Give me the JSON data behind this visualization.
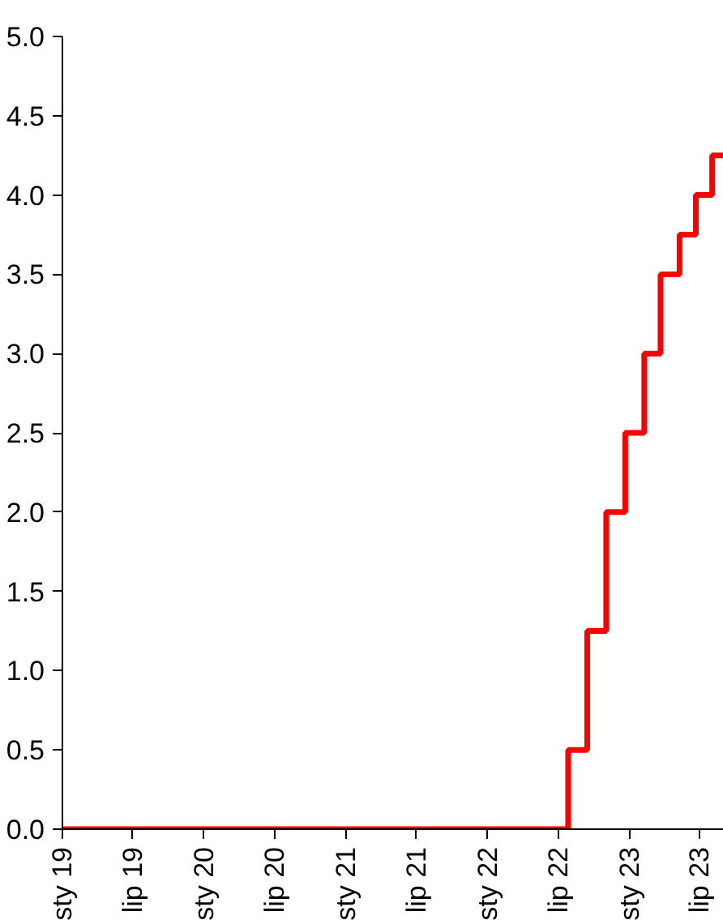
{
  "chart_data": {
    "type": "step",
    "x": [
      "2019-01-01",
      "2022-07-27",
      "2022-09-14",
      "2022-11-02",
      "2022-12-21",
      "2023-02-08",
      "2023-03-22",
      "2023-05-10",
      "2023-06-21",
      "2023-08-02",
      "2023-08-31"
    ],
    "series": [
      {
        "color": "#ff0000",
        "values": [
          0,
          0.5,
          1.25,
          2.0,
          2.5,
          3.0,
          3.5,
          3.75,
          4.0,
          4.25,
          4.25
        ]
      }
    ],
    "xlim": [
      "2019-01-01",
      "2023-09-01"
    ],
    "xticks": [
      {
        "value": "2019-01-01",
        "label": "sty 19"
      },
      {
        "value": "2019-07-01",
        "label": "lip 19"
      },
      {
        "value": "2020-01-01",
        "label": "sty 20"
      },
      {
        "value": "2020-07-01",
        "label": "lip 20"
      },
      {
        "value": "2021-01-01",
        "label": "sty 21"
      },
      {
        "value": "2021-07-01",
        "label": "lip 21"
      },
      {
        "value": "2022-01-01",
        "label": "sty 22"
      },
      {
        "value": "2022-07-01",
        "label": "lip 22"
      },
      {
        "value": "2023-01-01",
        "label": "sty 23"
      },
      {
        "value": "2023-07-01",
        "label": "lip 23"
      }
    ],
    "ylim": [
      0,
      5
    ],
    "yticks": [
      {
        "value": 0,
        "label": "0.0"
      },
      {
        "value": 0.5,
        "label": "0.5"
      },
      {
        "value": 1,
        "label": "1.0"
      },
      {
        "value": 1.5,
        "label": "1.5"
      },
      {
        "value": 2,
        "label": "2.0"
      },
      {
        "value": 2.5,
        "label": "2.5"
      },
      {
        "value": 3,
        "label": "3.0"
      },
      {
        "value": 3.5,
        "label": "3.5"
      },
      {
        "value": 4,
        "label": "4.0"
      },
      {
        "value": 4.5,
        "label": "4.5"
      },
      {
        "value": 5,
        "label": "5.0"
      }
    ],
    "grid": false,
    "line_style": "solid",
    "marker": "none"
  }
}
